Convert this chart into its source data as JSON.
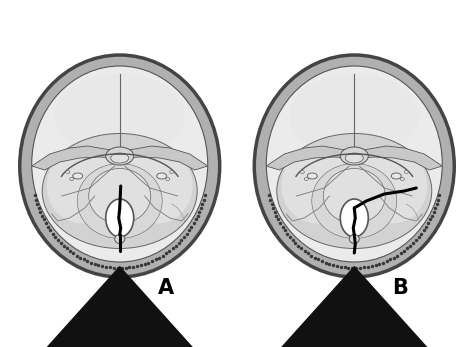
{
  "background_color": "#ffffff",
  "skull_outer_color": "#b0b0b0",
  "skull_outer_edge": "#444444",
  "skull_inner_color": "#e0e0e0",
  "skull_inner_edge": "#555555",
  "posterior_fossa_color": "#c8c8c8",
  "posterior_fossa_edge": "#666666",
  "lighter_region_color": "#e8e8e8",
  "darker_region_color": "#b8b8b8",
  "petrous_color": "#c0c0c0",
  "petrous_edge": "#555555",
  "sphenoid_color": "#d0d0d0",
  "sphenoid_edge": "#555555",
  "foramen_color": "#f5f5f5",
  "foramen_edge": "#555555",
  "sella_color": "#d8d8d8",
  "mid_structure_color": "#c0c0c0",
  "fracture_color": "#000000",
  "dotted_edge_color": "#333333",
  "label_A": "A",
  "label_B": "B",
  "arrow_color": "#111111",
  "fig_width": 4.74,
  "fig_height": 3.47,
  "frontal_line_color": "#666666",
  "suture_color": "#666666"
}
